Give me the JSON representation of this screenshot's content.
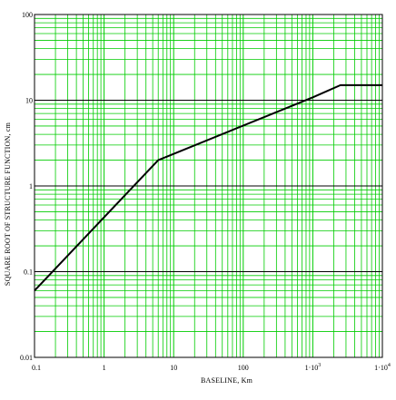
{
  "chart_data": {
    "type": "line",
    "title": "",
    "xlabel": "BASELINE, Km",
    "ylabel": "SQUARE ROOT OF STRUCTURE FUNCTION,  cm",
    "xscale": "log",
    "yscale": "log",
    "xlim": [
      0.1,
      10000
    ],
    "ylim": [
      0.01,
      100
    ],
    "grid": true,
    "x_tick_labels": [
      {
        "value": 0.1,
        "base": "0.1",
        "exp": ""
      },
      {
        "value": 1,
        "base": "1",
        "exp": ""
      },
      {
        "value": 10,
        "base": "10",
        "exp": ""
      },
      {
        "value": 100,
        "base": "100",
        "exp": ""
      },
      {
        "value": 1000,
        "base": "1·10",
        "exp": "3"
      },
      {
        "value": 10000,
        "base": "1·10",
        "exp": "4"
      }
    ],
    "y_tick_labels": [
      {
        "value": 100,
        "label": "100"
      },
      {
        "value": 10,
        "label": "10"
      },
      {
        "value": 1,
        "label": "1"
      },
      {
        "value": 0.1,
        "label": "0.1"
      },
      {
        "value": 0.01,
        "label": "0.01"
      }
    ],
    "series": [
      {
        "x": [
          0.1,
          6,
          1000,
          2500,
          10000
        ],
        "y": [
          0.06,
          2,
          10.8,
          15,
          15
        ]
      }
    ],
    "colors": {
      "grid": "#00cc00",
      "major_grid_h": "#000000",
      "line": "#000000",
      "frame": "#000000"
    }
  }
}
